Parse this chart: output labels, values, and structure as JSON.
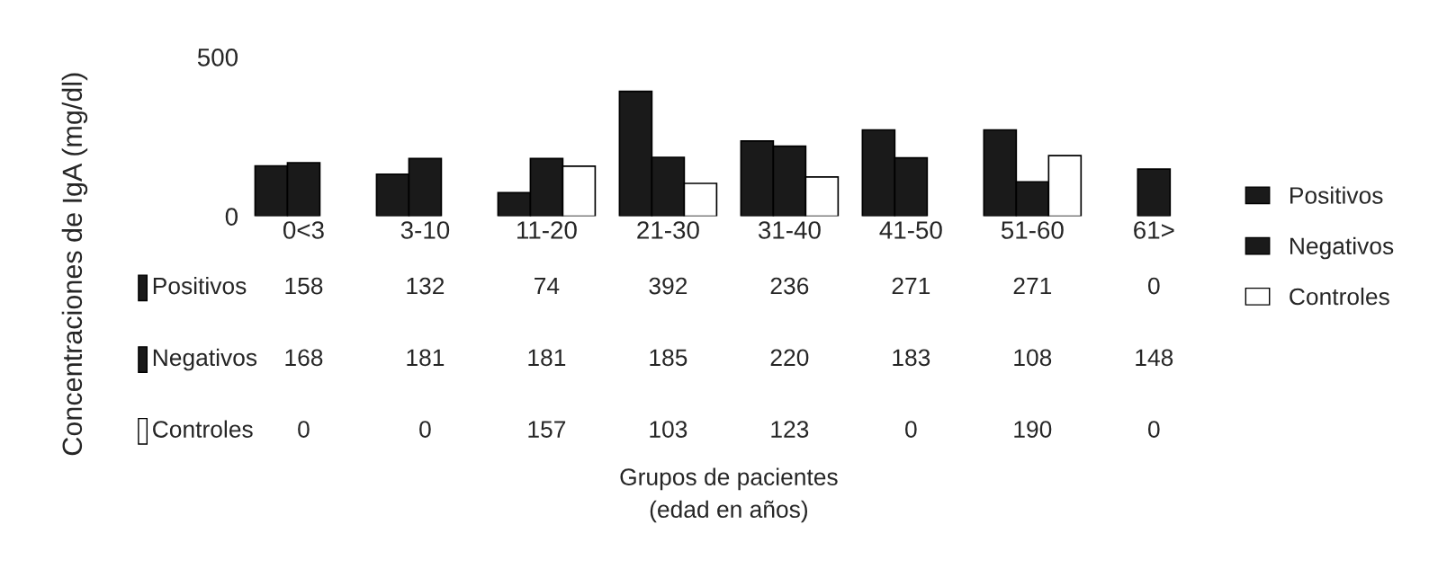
{
  "chart_data": {
    "type": "bar",
    "annotations": [
      "Grupos de pacientes\n(edad en años)"
    ],
    "ylabel": "Concentraciones de IgA (mg/dl)",
    "categories": [
      "0<3",
      "3-10",
      "11-20",
      "21-30",
      "31-40",
      "41-50",
      "51-60",
      "61>"
    ],
    "series": [
      {
        "name": "Positivos",
        "color": "#1a1a1a",
        "values": [
          158,
          132,
          74,
          392,
          236,
          271,
          271,
          0
        ]
      },
      {
        "name": "Negativos",
        "color": "#1a1a1a",
        "values": [
          168,
          181,
          181,
          185,
          220,
          183,
          108,
          148
        ]
      },
      {
        "name": "Controles",
        "color": "#ffffff",
        "values": [
          0,
          0,
          157,
          103,
          123,
          0,
          190,
          0
        ]
      }
    ],
    "ylim": [
      0,
      500
    ],
    "yticks": [
      0,
      500
    ],
    "data_labels": true,
    "legend": "right",
    "grid": false
  }
}
